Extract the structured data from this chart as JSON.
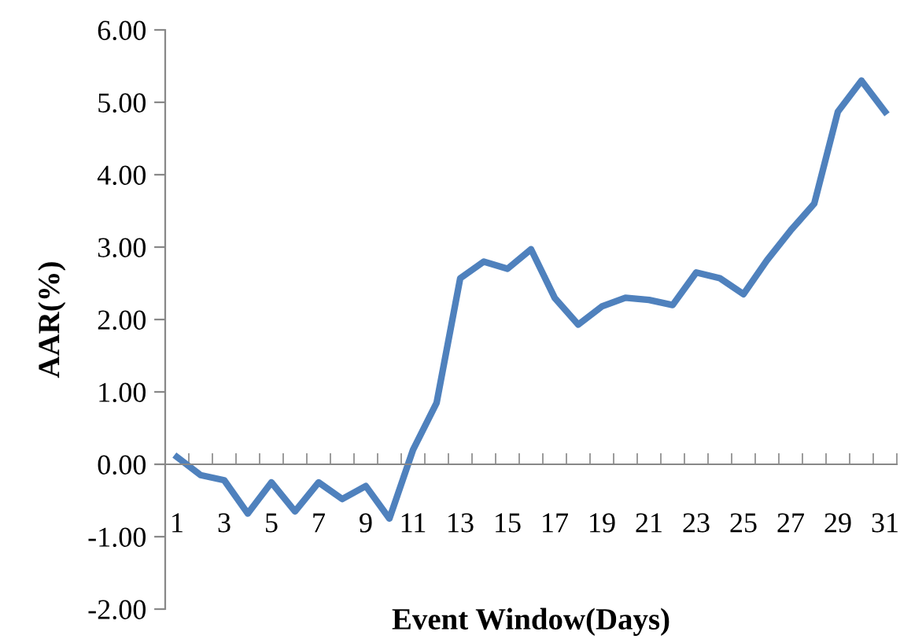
{
  "chart_data": {
    "type": "line",
    "xlabel": "Event Window(Days)",
    "ylabel": "AAR(%)",
    "categories": [
      "1",
      null,
      "3",
      null,
      "5",
      null,
      "7",
      null,
      "9",
      null,
      "11",
      null,
      "13",
      null,
      "15",
      null,
      "17",
      null,
      "19",
      null,
      "21",
      null,
      "23",
      null,
      "25",
      null,
      "27",
      null,
      "29",
      null,
      "31"
    ],
    "series": [
      {
        "color": "#4f81bd",
        "values": [
          0.1,
          -0.15,
          -0.22,
          -0.68,
          -0.25,
          -0.65,
          -0.25,
          -0.48,
          -0.3,
          -0.75,
          0.2,
          0.85,
          2.57,
          2.8,
          2.7,
          2.97,
          2.3,
          1.93,
          2.18,
          2.3,
          2.27,
          2.2,
          2.65,
          2.57,
          2.35,
          2.82,
          3.23,
          3.6,
          4.87,
          5.3,
          4.87
        ]
      }
    ],
    "ylim": [
      -2,
      6
    ],
    "yticks": [
      {
        "value": -2,
        "label": "-2.00"
      },
      {
        "value": -1,
        "label": "-1.00"
      },
      {
        "value": 0,
        "label": "0.00"
      },
      {
        "value": 1,
        "label": "1.00"
      },
      {
        "value": 2,
        "label": "2.00"
      },
      {
        "value": 3,
        "label": "3.00"
      },
      {
        "value": 4,
        "label": "4.00"
      },
      {
        "value": 5,
        "label": "5.00"
      },
      {
        "value": 6,
        "label": "6.00"
      }
    ],
    "grid": false,
    "marker": "none",
    "line_style": "solid"
  }
}
